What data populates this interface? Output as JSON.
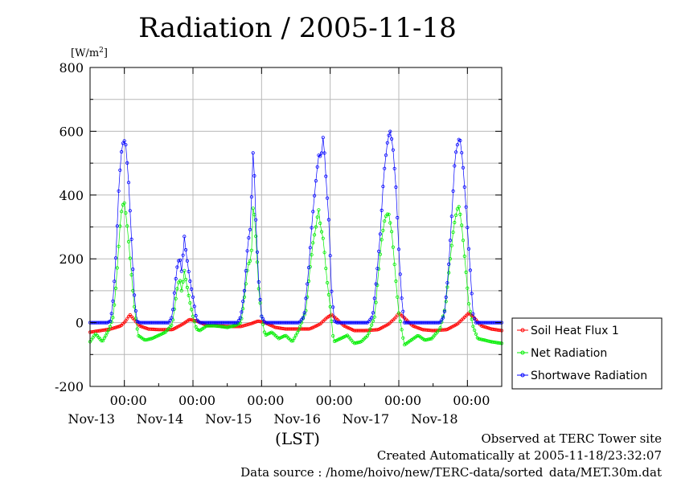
{
  "chart_data": {
    "type": "line",
    "title": "Radiation / 2005-11-18",
    "y_unit": "[W/m",
    "y_unit_sup": "2",
    "y_unit_close": "]",
    "xlabel": "(LST)",
    "ylim": [
      -200,
      800
    ],
    "yticks": [
      -200,
      0,
      200,
      400,
      600,
      800
    ],
    "xlim": [
      0,
      6
    ],
    "x_unit": "days since the left edge of the plot (Nov-12 12:00 LST)",
    "xtick_positions": [
      0.5,
      1.5,
      2.5,
      3.5,
      4.5,
      5.5
    ],
    "xtick_time_label": "00:00",
    "xtick_date_labels": [
      "Nov-13",
      "Nov-14",
      "Nov-15",
      "Nov-16",
      "Nov-17",
      "Nov-18"
    ],
    "grid": true,
    "legend_position": "right",
    "series": [
      {
        "name": "Soil Heat Flux 1",
        "color": "#ff0000",
        "points": [
          [
            0,
            -30
          ],
          [
            0.3,
            -20
          ],
          [
            0.45,
            -10
          ],
          [
            0.52,
            5
          ],
          [
            0.58,
            25
          ],
          [
            0.64,
            10
          ],
          [
            0.72,
            -10
          ],
          [
            0.85,
            -20
          ],
          [
            1.0,
            -22
          ],
          [
            1.2,
            -22
          ],
          [
            1.35,
            -5
          ],
          [
            1.45,
            10
          ],
          [
            1.55,
            5
          ],
          [
            1.7,
            -8
          ],
          [
            1.85,
            -10
          ],
          [
            2.0,
            -12
          ],
          [
            2.2,
            -12
          ],
          [
            2.35,
            -3
          ],
          [
            2.45,
            5
          ],
          [
            2.55,
            0
          ],
          [
            2.7,
            -15
          ],
          [
            2.85,
            -20
          ],
          [
            3.0,
            -20
          ],
          [
            3.2,
            -20
          ],
          [
            3.35,
            -5
          ],
          [
            3.45,
            15
          ],
          [
            3.52,
            25
          ],
          [
            3.6,
            10
          ],
          [
            3.7,
            -10
          ],
          [
            3.85,
            -25
          ],
          [
            4.0,
            -25
          ],
          [
            4.2,
            -22
          ],
          [
            4.35,
            -5
          ],
          [
            4.45,
            15
          ],
          [
            4.5,
            30
          ],
          [
            4.58,
            15
          ],
          [
            4.7,
            -10
          ],
          [
            4.85,
            -22
          ],
          [
            5.0,
            -25
          ],
          [
            5.2,
            -22
          ],
          [
            5.35,
            -5
          ],
          [
            5.45,
            15
          ],
          [
            5.52,
            30
          ],
          [
            5.6,
            15
          ],
          [
            5.7,
            -10
          ],
          [
            5.85,
            -20
          ],
          [
            6.0,
            -25
          ]
        ]
      },
      {
        "name": "Net Radiation",
        "color": "#00ee00",
        "points": [
          [
            0,
            -60
          ],
          [
            0.08,
            -35
          ],
          [
            0.18,
            -60
          ],
          [
            0.28,
            -20
          ],
          [
            0.34,
            20
          ],
          [
            0.38,
            120
          ],
          [
            0.42,
            250
          ],
          [
            0.45,
            340
          ],
          [
            0.48,
            370
          ],
          [
            0.5,
            375
          ],
          [
            0.53,
            330
          ],
          [
            0.56,
            260
          ],
          [
            0.6,
            160
          ],
          [
            0.65,
            40
          ],
          [
            0.7,
            -40
          ],
          [
            0.8,
            -55
          ],
          [
            0.9,
            -50
          ],
          [
            1.0,
            -40
          ],
          [
            1.1,
            -30
          ],
          [
            1.2,
            -5
          ],
          [
            1.24,
            60
          ],
          [
            1.28,
            120
          ],
          [
            1.31,
            135
          ],
          [
            1.34,
            90
          ],
          [
            1.37,
            170
          ],
          [
            1.4,
            130
          ],
          [
            1.45,
            70
          ],
          [
            1.5,
            20
          ],
          [
            1.55,
            -20
          ],
          [
            1.6,
            -25
          ],
          [
            1.7,
            -10
          ],
          [
            1.8,
            -10
          ],
          [
            1.9,
            -12
          ],
          [
            2.0,
            -15
          ],
          [
            2.1,
            -10
          ],
          [
            2.2,
            0
          ],
          [
            2.24,
            60
          ],
          [
            2.3,
            180
          ],
          [
            2.35,
            200
          ],
          [
            2.38,
            390
          ],
          [
            2.42,
            260
          ],
          [
            2.46,
            100
          ],
          [
            2.5,
            20
          ],
          [
            2.55,
            -40
          ],
          [
            2.65,
            -30
          ],
          [
            2.75,
            -50
          ],
          [
            2.85,
            -40
          ],
          [
            2.95,
            -60
          ],
          [
            3.05,
            -20
          ],
          [
            3.15,
            40
          ],
          [
            3.2,
            160
          ],
          [
            3.25,
            250
          ],
          [
            3.3,
            310
          ],
          [
            3.33,
            360
          ],
          [
            3.36,
            300
          ],
          [
            3.4,
            260
          ],
          [
            3.45,
            140
          ],
          [
            3.5,
            50
          ],
          [
            3.55,
            -60
          ],
          [
            3.65,
            -50
          ],
          [
            3.75,
            -40
          ],
          [
            3.85,
            -65
          ],
          [
            3.95,
            -60
          ],
          [
            4.05,
            -40
          ],
          [
            4.15,
            20
          ],
          [
            4.2,
            150
          ],
          [
            4.25,
            260
          ],
          [
            4.3,
            330
          ],
          [
            4.35,
            345
          ],
          [
            4.4,
            280
          ],
          [
            4.45,
            150
          ],
          [
            4.5,
            30
          ],
          [
            4.58,
            -70
          ],
          [
            4.68,
            -55
          ],
          [
            4.78,
            -40
          ],
          [
            4.88,
            -55
          ],
          [
            4.98,
            -50
          ],
          [
            5.1,
            -20
          ],
          [
            5.18,
            50
          ],
          [
            5.24,
            180
          ],
          [
            5.3,
            300
          ],
          [
            5.35,
            355
          ],
          [
            5.38,
            365
          ],
          [
            5.42,
            300
          ],
          [
            5.47,
            180
          ],
          [
            5.52,
            60
          ],
          [
            5.58,
            -10
          ],
          [
            5.65,
            -50
          ],
          [
            5.75,
            -55
          ],
          [
            5.85,
            -60
          ],
          [
            6.0,
            -65
          ]
        ]
      },
      {
        "name": "Shortwave Radiation",
        "color": "#0000ff",
        "points": [
          [
            0,
            0
          ],
          [
            0.25,
            0
          ],
          [
            0.3,
            5
          ],
          [
            0.34,
            80
          ],
          [
            0.38,
            220
          ],
          [
            0.42,
            430
          ],
          [
            0.46,
            540
          ],
          [
            0.49,
            575
          ],
          [
            0.52,
            560
          ],
          [
            0.56,
            450
          ],
          [
            0.6,
            280
          ],
          [
            0.64,
            100
          ],
          [
            0.68,
            5
          ],
          [
            0.72,
            0
          ],
          [
            1.15,
            0
          ],
          [
            1.2,
            20
          ],
          [
            1.24,
            120
          ],
          [
            1.28,
            190
          ],
          [
            1.31,
            200
          ],
          [
            1.34,
            150
          ],
          [
            1.37,
            280
          ],
          [
            1.4,
            220
          ],
          [
            1.45,
            140
          ],
          [
            1.5,
            80
          ],
          [
            1.55,
            10
          ],
          [
            1.6,
            0
          ],
          [
            2.15,
            0
          ],
          [
            2.2,
            20
          ],
          [
            2.25,
            100
          ],
          [
            2.3,
            250
          ],
          [
            2.34,
            300
          ],
          [
            2.38,
            565
          ],
          [
            2.42,
            300
          ],
          [
            2.46,
            120
          ],
          [
            2.5,
            20
          ],
          [
            2.55,
            0
          ],
          [
            3.05,
            0
          ],
          [
            3.12,
            20
          ],
          [
            3.18,
            150
          ],
          [
            3.23,
            300
          ],
          [
            3.28,
            420
          ],
          [
            3.33,
            525
          ],
          [
            3.37,
            520
          ],
          [
            3.4,
            590
          ],
          [
            3.44,
            450
          ],
          [
            3.48,
            320
          ],
          [
            3.52,
            100
          ],
          [
            3.56,
            5
          ],
          [
            3.6,
            0
          ],
          [
            4.05,
            0
          ],
          [
            4.12,
            20
          ],
          [
            4.18,
            150
          ],
          [
            4.23,
            280
          ],
          [
            4.28,
            460
          ],
          [
            4.33,
            560
          ],
          [
            4.37,
            605
          ],
          [
            4.41,
            560
          ],
          [
            4.46,
            420
          ],
          [
            4.5,
            230
          ],
          [
            4.54,
            80
          ],
          [
            4.58,
            0
          ],
          [
            5.1,
            0
          ],
          [
            5.16,
            20
          ],
          [
            5.22,
            150
          ],
          [
            5.27,
            330
          ],
          [
            5.32,
            520
          ],
          [
            5.37,
            575
          ],
          [
            5.4,
            570
          ],
          [
            5.44,
            480
          ],
          [
            5.49,
            330
          ],
          [
            5.54,
            170
          ],
          [
            5.58,
            30
          ],
          [
            5.62,
            0
          ],
          [
            6.0,
            0
          ]
        ]
      }
    ]
  },
  "footer": {
    "line1": "Observed at TERC Tower site",
    "line2": "Created Automatically at 2005-11-18/23:32:07",
    "line3": "Data source : /home/hoivo/new/TERC-data/sorted_data/MET.30m.dat"
  }
}
